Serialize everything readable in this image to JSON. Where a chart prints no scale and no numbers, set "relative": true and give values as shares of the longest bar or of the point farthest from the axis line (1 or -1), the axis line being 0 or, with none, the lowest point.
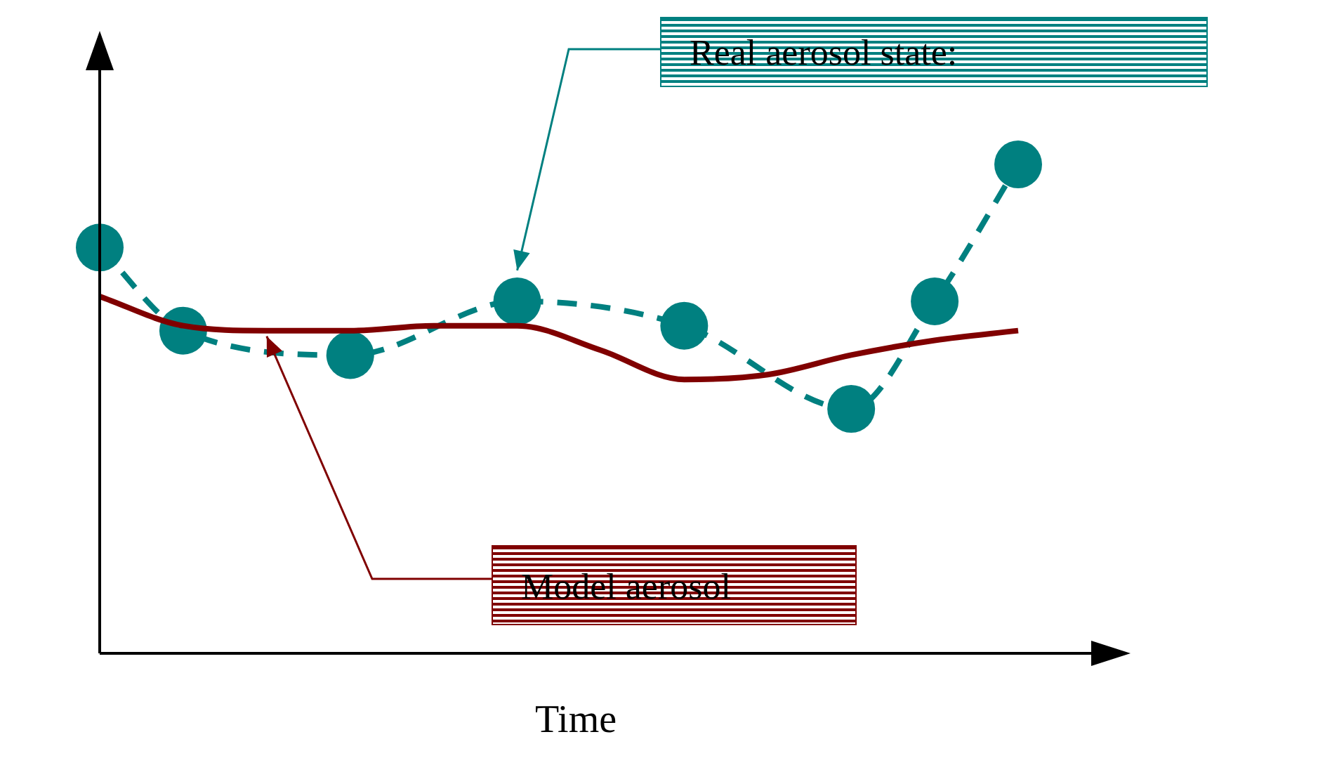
{
  "chart_data": {
    "type": "line",
    "relative": true,
    "xlabel": "Time",
    "tick_labels": false,
    "legend": false,
    "grid": false,
    "categories": [
      null,
      null,
      null,
      null,
      null,
      null,
      null,
      null,
      null,
      null,
      null,
      null
    ],
    "series": [
      {
        "color": "#800000",
        "line_style": "solid",
        "marker": "none",
        "values": [
          0.73,
          0.67,
          0.66,
          0.66,
          0.67,
          0.67,
          0.62,
          0.56,
          0.57,
          0.61,
          0.64,
          0.66
        ]
      },
      {
        "color": "#008080",
        "line_style": "dashed",
        "marker": "circle",
        "values": [
          0.83,
          0.66,
          null,
          0.61,
          null,
          0.72,
          null,
          0.67,
          null,
          0.5,
          0.72,
          1.0
        ]
      }
    ],
    "annotations": [
      "Real aerosol state:",
      "Model aerosol"
    ]
  }
}
